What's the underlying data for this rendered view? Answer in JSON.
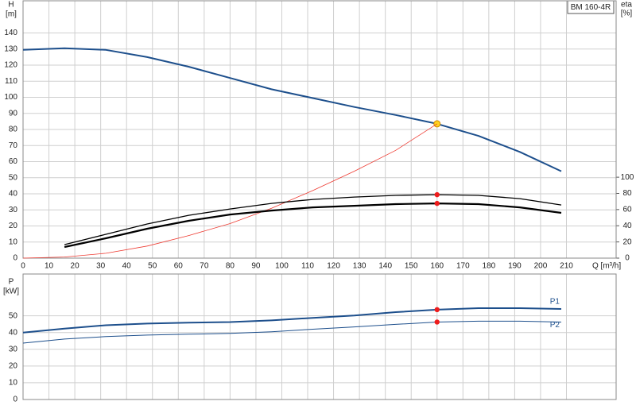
{
  "chart_data": [
    {
      "type": "line",
      "title": "BM 160-4R",
      "x_label": "Q [m³/h]",
      "y_label": "H",
      "y_unit": "[m]",
      "y2_label": "eta",
      "y2_unit": "[%]",
      "x": [
        0,
        16,
        32,
        48,
        64,
        80,
        96,
        112,
        128,
        144,
        160,
        176,
        192,
        208
      ],
      "xlim": [
        0,
        229.2
      ],
      "xticks": [
        0,
        10,
        20,
        30,
        40,
        50,
        60,
        70,
        80,
        90,
        100,
        110,
        120,
        130,
        140,
        150,
        160,
        170,
        180,
        190,
        200,
        210
      ],
      "ylim": [
        0,
        160
      ],
      "yticks": [
        0,
        10,
        20,
        30,
        40,
        50,
        60,
        70,
        80,
        90,
        100,
        110,
        120,
        130,
        140
      ],
      "y2lim": [
        0,
        318
      ],
      "y2ticks": [
        0,
        20,
        40,
        60,
        80,
        100
      ],
      "grid": true,
      "duty_x": 160,
      "series": [
        {
          "color": "#1d4f8c",
          "width": 2,
          "marker_color": "#ffd21f",
          "values": [
            129.5,
            130.5,
            129.5,
            125,
            119,
            112,
            105,
            99.5,
            94,
            89,
            83.5,
            76,
            66,
            54
          ]
        },
        {
          "color": "#ee3b32",
          "width": 0.8,
          "values": [
            0,
            0.7,
            3,
            7.5,
            14,
            21.5,
            31,
            42,
            54,
            67,
            83.5,
            null,
            null,
            null
          ]
        },
        {
          "color": "#000000",
          "width": 1.3,
          "axis": "y2",
          "marker_color": "#ee1c1c",
          "values": [
            null,
            16.7,
            29.4,
            42.2,
            52.9,
            60.8,
            67.6,
            72.5,
            75.5,
            77.5,
            78.4,
            77.5,
            73.5,
            65.7
          ]
        },
        {
          "color": "#000000",
          "width": 2.2,
          "axis": "y2",
          "marker_color": "#ee1c1c",
          "values": [
            null,
            13.7,
            24.5,
            36.3,
            46.1,
            53.9,
            58.8,
            62.7,
            64.7,
            66.7,
            67.6,
            66.7,
            62.7,
            55.9
          ]
        }
      ]
    },
    {
      "type": "line",
      "y_label": "P",
      "y_unit": "[kW]",
      "x": [
        0,
        16,
        32,
        48,
        64,
        80,
        96,
        112,
        128,
        144,
        160,
        176,
        192,
        208
      ],
      "xlim": [
        0,
        229.2
      ],
      "ylim": [
        0,
        75
      ],
      "yticks": [
        0,
        10,
        20,
        30,
        40,
        50
      ],
      "grid": true,
      "duty_x": 160,
      "series": [
        {
          "name": "P1",
          "color": "#1d4f8c",
          "width": 2,
          "marker_color": "#ee1c1c",
          "values": [
            40,
            42.4,
            44.4,
            45.4,
            45.9,
            46.3,
            47.3,
            48.8,
            50.2,
            52.2,
            53.7,
            54.6,
            54.6,
            54.1
          ]
        },
        {
          "name": "P2",
          "color": "#1d4f8c",
          "width": 1,
          "marker_color": "#ee1c1c",
          "values": [
            33.7,
            36.1,
            37.6,
            38.5,
            39,
            39.5,
            40.5,
            42,
            43.4,
            44.9,
            46.3,
            46.8,
            46.8,
            46.3
          ]
        }
      ]
    }
  ]
}
